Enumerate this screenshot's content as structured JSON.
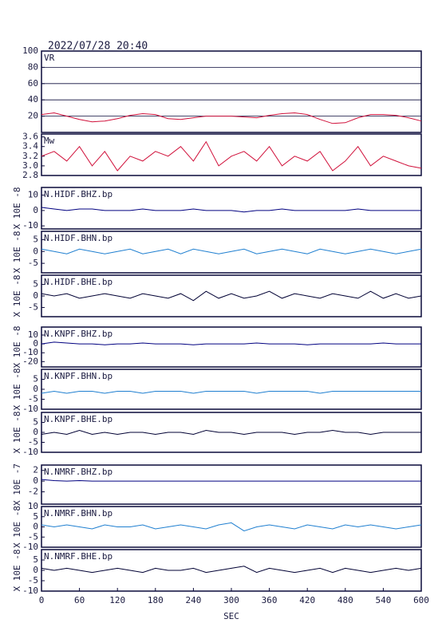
{
  "chart_data": [
    {
      "type": "line",
      "title": "2022/07/28 20:40",
      "label": "VR",
      "color": "#d0103a",
      "grid": true,
      "x": [
        0,
        20,
        40,
        60,
        80,
        100,
        120,
        140,
        160,
        180,
        200,
        220,
        240,
        260,
        280,
        300,
        320,
        340,
        360,
        380,
        400,
        420,
        440,
        460,
        480,
        500,
        520,
        540,
        560,
        580,
        600
      ],
      "values": [
        22,
        24,
        20,
        16,
        13,
        14,
        17,
        21,
        23,
        22,
        17,
        16,
        18,
        20,
        20,
        20,
        19,
        18,
        21,
        23,
        24,
        22,
        16,
        11,
        12,
        18,
        22,
        22,
        21,
        18,
        14
      ],
      "xlim": [
        0,
        600
      ],
      "ylim": [
        0,
        100
      ],
      "yticks": [
        20,
        40,
        60,
        80,
        100
      ]
    },
    {
      "type": "line",
      "label": "Mw",
      "color": "#d0103a",
      "grid": false,
      "x": [
        0,
        20,
        40,
        60,
        80,
        100,
        120,
        140,
        160,
        180,
        200,
        220,
        240,
        260,
        280,
        300,
        320,
        340,
        360,
        380,
        400,
        420,
        440,
        460,
        480,
        500,
        520,
        540,
        560,
        580,
        600
      ],
      "values": [
        3.2,
        3.3,
        3.1,
        3.4,
        3.0,
        3.3,
        2.9,
        3.2,
        3.1,
        3.3,
        3.2,
        3.4,
        3.1,
        3.5,
        3.0,
        3.2,
        3.3,
        3.1,
        3.4,
        3.0,
        3.2,
        3.1,
        3.3,
        2.9,
        3.1,
        3.4,
        3.0,
        3.2,
        3.1,
        3.0,
        2.95
      ],
      "xlim": [
        0,
        600
      ],
      "ylim": [
        2.8,
        3.66
      ],
      "yticks": [
        2.8,
        {
          "value": 3,
          "label": "3.0"
        },
        3.2,
        3.4,
        3.6
      ]
    },
    {
      "type": "line",
      "label": "N.HIDF.BHZ.bp",
      "ylabel": "X 10E -8",
      "color": "#000080",
      "grid": false,
      "x": [
        0,
        20,
        40,
        60,
        80,
        100,
        120,
        140,
        160,
        180,
        200,
        220,
        240,
        260,
        280,
        300,
        320,
        340,
        360,
        380,
        400,
        420,
        440,
        460,
        480,
        500,
        520,
        540,
        560,
        580,
        600
      ],
      "values": [
        2,
        1,
        0,
        1,
        1,
        0,
        0,
        0,
        1,
        0,
        0,
        0,
        1,
        0,
        0,
        0,
        -1,
        0,
        0,
        1,
        0,
        0,
        0,
        0,
        0,
        1,
        0,
        0,
        0,
        0,
        0
      ],
      "xlim": [
        0,
        600
      ],
      "ylim": [
        -12,
        15
      ],
      "yticks": [
        -10,
        0,
        10
      ]
    },
    {
      "type": "line",
      "label": "N.HIDF.BHN.bp",
      "ylabel": "X 10E -8",
      "color": "#1f7fd0",
      "grid": false,
      "x": [
        0,
        20,
        40,
        60,
        80,
        100,
        120,
        140,
        160,
        180,
        200,
        220,
        240,
        260,
        280,
        300,
        320,
        340,
        360,
        380,
        400,
        420,
        440,
        460,
        480,
        500,
        520,
        540,
        560,
        580,
        600
      ],
      "values": [
        1,
        0,
        -1,
        1,
        0,
        -1,
        0,
        1,
        -1,
        0,
        1,
        -1,
        1,
        0,
        -1,
        0,
        1,
        -1,
        0,
        1,
        0,
        -1,
        1,
        0,
        -1,
        0,
        1,
        0,
        -1,
        0,
        1
      ],
      "xlim": [
        0,
        600
      ],
      "ylim": [
        -9,
        8.5
      ],
      "yticks": [
        -5,
        0,
        5
      ]
    },
    {
      "type": "line",
      "label": "N.HIDF.BHE.bp",
      "ylabel": "X 10E -8",
      "color": "#000033",
      "grid": false,
      "x": [
        0,
        20,
        40,
        60,
        80,
        100,
        120,
        140,
        160,
        180,
        200,
        220,
        240,
        260,
        280,
        300,
        320,
        340,
        360,
        380,
        400,
        420,
        440,
        460,
        480,
        500,
        520,
        540,
        560,
        580,
        600
      ],
      "values": [
        1,
        0,
        1,
        -1,
        0,
        1,
        0,
        -1,
        1,
        0,
        -1,
        1,
        -2,
        2,
        -1,
        1,
        -1,
        0,
        2,
        -1,
        1,
        0,
        -1,
        1,
        0,
        -1,
        2,
        -1,
        1,
        -1,
        0
      ],
      "xlim": [
        0,
        600
      ],
      "ylim": [
        -9,
        9
      ],
      "yticks": [
        -5,
        0,
        5
      ]
    },
    {
      "type": "line",
      "label": "N.KNPF.BHZ.bp",
      "ylabel": "X 10E -8",
      "color": "#000080",
      "grid": false,
      "x": [
        0,
        20,
        40,
        60,
        80,
        100,
        120,
        140,
        160,
        180,
        200,
        220,
        240,
        260,
        280,
        300,
        320,
        340,
        360,
        380,
        400,
        420,
        440,
        460,
        480,
        500,
        520,
        540,
        560,
        580,
        600
      ],
      "values": [
        0,
        2,
        1,
        0,
        0,
        -1,
        0,
        0,
        1,
        0,
        0,
        0,
        -1,
        0,
        0,
        0,
        0,
        1,
        0,
        0,
        0,
        -1,
        0,
        0,
        0,
        0,
        0,
        1,
        0,
        0,
        0
      ],
      "xlim": [
        0,
        600
      ],
      "ylim": [
        -26,
        19
      ],
      "yticks": [
        -20,
        -10,
        0,
        10
      ]
    },
    {
      "type": "line",
      "label": "N.KNPF.BHN.bp",
      "ylabel": "X 10E -8",
      "color": "#1f7fd0",
      "grid": false,
      "x": [
        0,
        20,
        40,
        60,
        80,
        100,
        120,
        140,
        160,
        180,
        200,
        220,
        240,
        260,
        280,
        300,
        320,
        340,
        360,
        380,
        400,
        420,
        440,
        460,
        480,
        500,
        520,
        540,
        560,
        580,
        600
      ],
      "values": [
        -2,
        -1,
        -2,
        -1,
        -1,
        -2,
        -1,
        -1,
        -2,
        -1,
        -1,
        -1,
        -2,
        -1,
        -1,
        -1,
        -1,
        -2,
        -1,
        -1,
        -1,
        -1,
        -2,
        -1,
        -1,
        -1,
        -1,
        -1,
        -1,
        -1,
        -1
      ],
      "xlim": [
        0,
        600
      ],
      "ylim": [
        -10,
        10
      ],
      "yticks": [
        -10,
        -5,
        0,
        5
      ]
    },
    {
      "type": "line",
      "label": "N.KNPF.BHE.bp",
      "ylabel": "X 10E -8",
      "color": "#000033",
      "grid": false,
      "x": [
        0,
        20,
        40,
        60,
        80,
        100,
        120,
        140,
        160,
        180,
        200,
        220,
        240,
        260,
        280,
        300,
        320,
        340,
        360,
        380,
        400,
        420,
        440,
        460,
        480,
        500,
        520,
        540,
        560,
        580,
        600
      ],
      "values": [
        -1,
        0,
        -1,
        1,
        -1,
        0,
        -1,
        0,
        0,
        -1,
        0,
        0,
        -1,
        1,
        0,
        0,
        -1,
        0,
        0,
        0,
        -1,
        0,
        0,
        1,
        0,
        0,
        -1,
        0,
        0,
        0,
        0
      ],
      "xlim": [
        0,
        600
      ],
      "ylim": [
        -10,
        10
      ],
      "yticks": [
        -10,
        -5,
        0,
        5
      ]
    },
    {
      "type": "line",
      "label": "N.NMRF.BHZ.bp",
      "ylabel": "X 10E -7",
      "color": "#000080",
      "grid": false,
      "x": [
        0,
        20,
        40,
        60,
        80,
        100,
        120,
        140,
        160,
        180,
        200,
        220,
        240,
        260,
        280,
        300,
        320,
        340,
        360,
        380,
        400,
        420,
        440,
        460,
        480,
        500,
        520,
        540,
        560,
        580,
        600
      ],
      "values": [
        0.3,
        0.1,
        0,
        0.1,
        0,
        0,
        0,
        0,
        0,
        0,
        0,
        0,
        0,
        0,
        0,
        0,
        0,
        0,
        0,
        0,
        0,
        0,
        0,
        0,
        0,
        0,
        0,
        0,
        0,
        0,
        0
      ],
      "xlim": [
        0,
        600
      ],
      "ylim": [
        -4.3,
        3
      ],
      "yticks": [
        -2,
        0,
        2
      ]
    },
    {
      "type": "line",
      "label": "N.NMRF.BHN.bp",
      "ylabel": "X 10E -8",
      "color": "#1f7fd0",
      "grid": false,
      "x": [
        0,
        20,
        40,
        60,
        80,
        100,
        120,
        140,
        160,
        180,
        200,
        220,
        240,
        260,
        280,
        300,
        320,
        340,
        360,
        380,
        400,
        420,
        440,
        460,
        480,
        500,
        520,
        540,
        560,
        580,
        600
      ],
      "values": [
        1,
        0,
        1,
        0,
        -1,
        1,
        0,
        0,
        1,
        -1,
        0,
        1,
        0,
        -1,
        1,
        2,
        -2,
        0,
        1,
        0,
        -1,
        1,
        0,
        -1,
        1,
        0,
        1,
        0,
        -1,
        0,
        1
      ],
      "xlim": [
        0,
        600
      ],
      "ylim": [
        -10,
        10
      ],
      "yticks": [
        -10,
        -5,
        0,
        5,
        10
      ]
    },
    {
      "type": "line",
      "label": "N.NMRF.BHE.bp",
      "ylabel": "X 10E -8",
      "color": "#000033",
      "grid": false,
      "x": [
        0,
        20,
        40,
        60,
        80,
        100,
        120,
        140,
        160,
        180,
        200,
        220,
        240,
        260,
        280,
        300,
        320,
        340,
        360,
        380,
        400,
        420,
        440,
        460,
        480,
        500,
        520,
        540,
        560,
        580,
        600
      ],
      "values": [
        1,
        0,
        1,
        0,
        -1,
        0,
        1,
        0,
        -1,
        1,
        0,
        0,
        1,
        -1,
        0,
        1,
        2,
        -1,
        1,
        0,
        -1,
        0,
        1,
        -1,
        1,
        0,
        -1,
        0,
        1,
        0,
        1
      ],
      "xlim": [
        0,
        600
      ],
      "ylim": [
        -10,
        10
      ],
      "yticks": [
        -10,
        -5,
        0,
        5
      ],
      "xlabel": "SEC",
      "xticks": [
        0,
        60,
        120,
        180,
        240,
        300,
        360,
        420,
        480,
        540,
        600
      ]
    }
  ]
}
